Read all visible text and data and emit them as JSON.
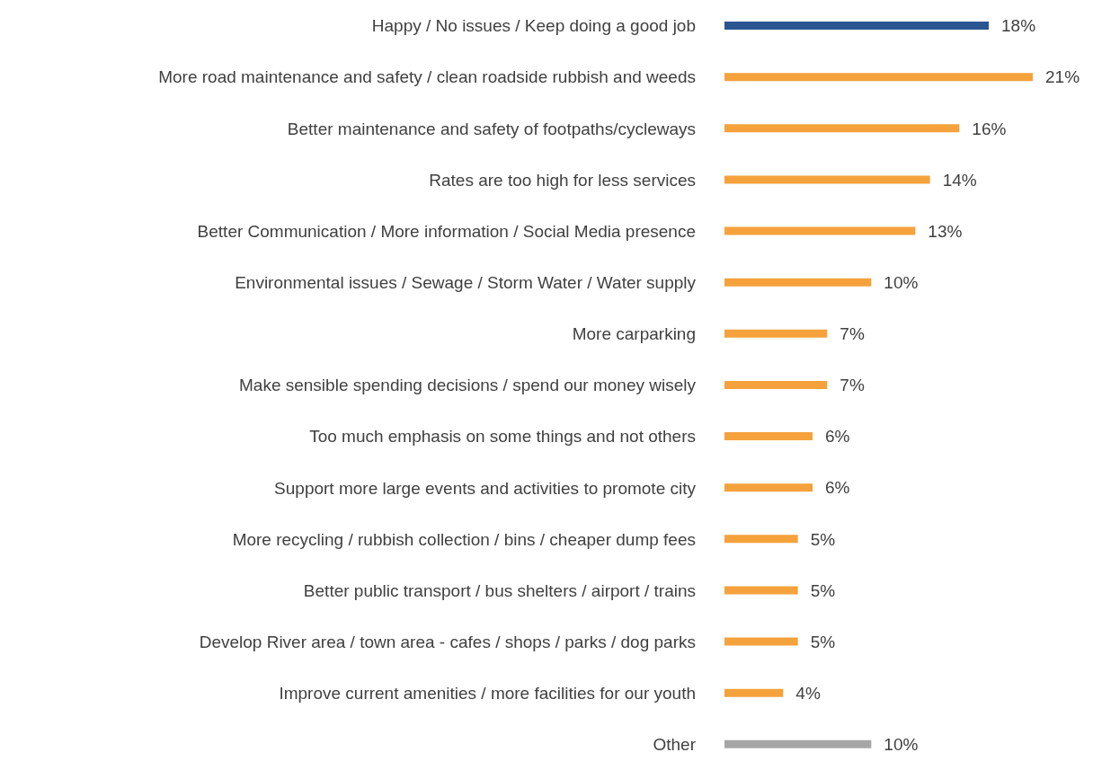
{
  "chart_data": {
    "type": "bar",
    "orientation": "horizontal",
    "categories": [
      "Happy / No issues / Keep doing a good job",
      "More road maintenance and safety / clean roadside rubbish and weeds",
      "Better maintenance and safety of footpaths/cycleways",
      "Rates are too high for less services",
      "Better Communication / More information / Social Media presence",
      "Environmental issues / Sewage / Storm Water / Water supply",
      "More carparking",
      "Make sensible spending decisions / spend our money wisely",
      "Too much emphasis on some things and not others",
      "Support more large events and activities to promote city",
      "More recycling / rubbish collection / bins / cheaper dump fees",
      "Better public transport / bus shelters / airport / trains",
      "Develop River area / town area - cafes / shops / parks / dog parks",
      "Improve current amenities / more facilities for our youth",
      "Other"
    ],
    "values": [
      18,
      21,
      16,
      14,
      13,
      10,
      7,
      7,
      6,
      6,
      5,
      5,
      5,
      4,
      10
    ],
    "value_labels": [
      "18%",
      "21%",
      "16%",
      "14%",
      "13%",
      "10%",
      "7%",
      "7%",
      "6%",
      "6%",
      "5%",
      "5%",
      "5%",
      "4%",
      "10%"
    ],
    "colors": [
      "#2a5591",
      "#f5a23d",
      "#f5a23d",
      "#f5a23d",
      "#f5a23d",
      "#f5a23d",
      "#f5a23d",
      "#f5a23d",
      "#f5a23d",
      "#f5a23d",
      "#f5a23d",
      "#f5a23d",
      "#f5a23d",
      "#f5a23d",
      "#a6a6a6"
    ],
    "grid": false,
    "legend": false
  }
}
